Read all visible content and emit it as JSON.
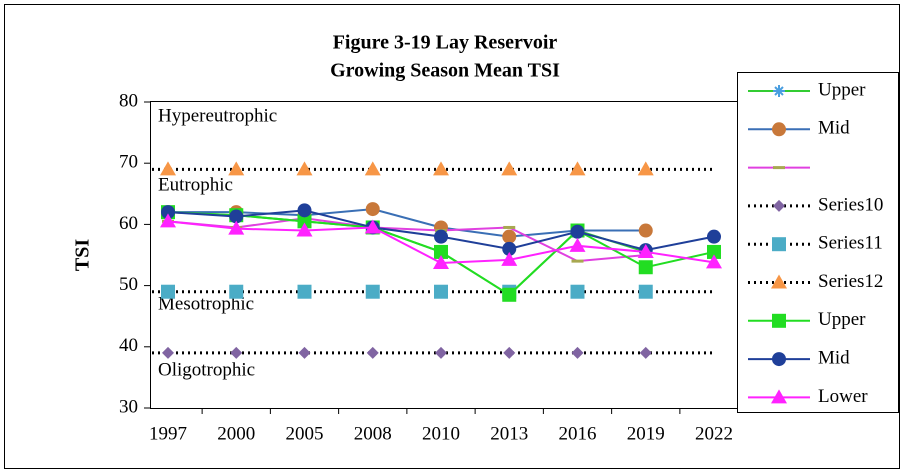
{
  "chart_data": {
    "type": "line",
    "title": "Figure 3-19 Lay Reservoir",
    "subtitle": "Growing Season Mean TSI",
    "y_label": "TSI",
    "annotations": [
      "Hypereutrophic",
      "Eutrophic",
      "Mesotrophic",
      "Oligotrophic"
    ],
    "categories": [
      "1997",
      "2000",
      "2005",
      "2008",
      "2010",
      "2013",
      "2016",
      "2019",
      "2022"
    ],
    "ylim": [
      30,
      80
    ],
    "yticks": [
      30,
      40,
      50,
      60,
      70,
      80
    ],
    "legend": "right",
    "series": [
      {
        "name": "Upper",
        "color": "#33cc33",
        "marker": "star",
        "marker_color": "#4a9ee0",
        "line_style": "solid",
        "values": [
          62,
          61.5,
          60.5,
          59.5,
          55.5,
          48.5,
          59,
          55.5,
          null
        ]
      },
      {
        "name": "Mid",
        "color": "#3a6fb5",
        "marker": "circle",
        "marker_color": "#c8783a",
        "line_style": "solid",
        "values": [
          62,
          62,
          61.5,
          62.5,
          59.5,
          58,
          59,
          59,
          null
        ]
      },
      {
        "name": null,
        "color": "#e040e0",
        "marker": "dash",
        "marker_color": "#a8a850",
        "line_style": "solid",
        "values": [
          60.5,
          59.5,
          61,
          59.5,
          59,
          59.5,
          54,
          55,
          null
        ]
      },
      {
        "name": "Series10",
        "color": "#000000",
        "marker": "diamond",
        "marker_color": "#8064a2",
        "line_style": "dotted",
        "values": [
          39,
          39,
          39,
          39,
          39,
          39,
          39,
          39,
          null
        ]
      },
      {
        "name": "Series11",
        "color": "#000000",
        "marker": "square",
        "marker_color": "#4bacc6",
        "line_style": "dotted",
        "values": [
          49,
          49,
          49,
          49,
          49,
          49,
          49,
          49,
          null
        ]
      },
      {
        "name": "Series12",
        "color": "#000000",
        "marker": "triangle",
        "marker_color": "#f79646",
        "line_style": "dotted",
        "values": [
          69,
          69,
          69,
          69,
          69,
          69,
          69,
          69,
          null
        ]
      },
      {
        "name": "Upper",
        "color": "#22dd22",
        "marker": "square",
        "marker_color": "#22dd22",
        "line_style": "solid",
        "values": [
          62,
          61.5,
          60.5,
          59.5,
          55.5,
          48.5,
          59,
          53,
          55.5
        ]
      },
      {
        "name": "Mid",
        "color": "#1f3f99",
        "marker": "circle",
        "marker_color": "#1f3f99",
        "line_style": "solid",
        "values": [
          62,
          61.3,
          62.3,
          59.5,
          58,
          56,
          58.8,
          55.8,
          58
        ]
      },
      {
        "name": "Lower",
        "color": "#ff22ff",
        "marker": "triangle",
        "marker_color": "#ff22ff",
        "line_style": "solid",
        "values": [
          60.5,
          59.3,
          59,
          59.5,
          53.7,
          54.2,
          56.5,
          55.5,
          53.8
        ]
      }
    ]
  }
}
